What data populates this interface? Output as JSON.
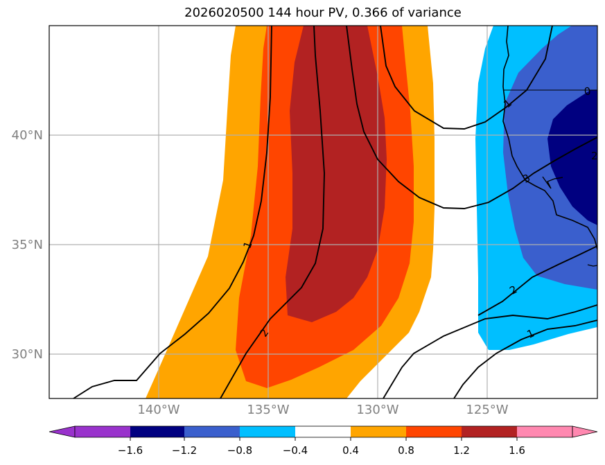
{
  "title": "2026020500 144 hour PV, 0.366 of variance",
  "axes": {
    "lat_ticks": [
      "40°N",
      "35°N",
      "30°N"
    ],
    "lon_ticks": [
      "140°W",
      "135°W",
      "130°W",
      "125°W"
    ],
    "lat_range": [
      28,
      45
    ],
    "lon_range": [
      -145,
      -120
    ]
  },
  "colorbar": {
    "ticks": [
      "−1.6",
      "−1.2",
      "−0.8",
      "−0.4",
      "0.4",
      "0.8",
      "1.2",
      "1.6"
    ],
    "bins": [
      {
        "range": "< -1.6",
        "color": "#9932cc"
      },
      {
        "range": "-1.6 to -1.2",
        "color": "#000080"
      },
      {
        "range": "-1.2 to -0.8",
        "color": "#3a5fcd"
      },
      {
        "range": "-0.8 to -0.4",
        "color": "#00bfff"
      },
      {
        "range": "-0.4 to 0.4",
        "color": "#ffffff"
      },
      {
        "range": "0.4 to 0.8",
        "color": "#ffa500"
      },
      {
        "range": "0.8 to 1.2",
        "color": "#ff4500"
      },
      {
        "range": "1.2 to 1.6",
        "color": "#b22222"
      },
      {
        "range": "> 1.6",
        "color": "#ff88b0"
      }
    ]
  },
  "contours": {
    "labels": [
      "1",
      "2",
      "3",
      "2",
      "1",
      "1",
      "2",
      "3",
      "0"
    ]
  },
  "chart_data": {
    "type": "heatmap",
    "title": "2026020500 144 hour PV, 0.366 of variance",
    "variable": "PV",
    "projection": "lat-lon map, North Pacific / US west coast",
    "x_axis": "longitude",
    "y_axis": "latitude",
    "xlim": [
      -145,
      -120
    ],
    "ylim": [
      28,
      45
    ],
    "xticks": [
      "140°W",
      "135°W",
      "130°W",
      "125°W"
    ],
    "yticks": [
      "30°N",
      "35°N",
      "40°N"
    ],
    "grid": true,
    "colorbar_levels": [
      -1.6,
      -1.2,
      -0.8,
      -0.4,
      0.4,
      0.8,
      1.2,
      1.6
    ],
    "colorbar_extend": "both",
    "contour_levels": [
      0,
      1,
      2,
      3
    ],
    "features": [
      {
        "sign": "positive",
        "peak_band": "1.2 to 1.6",
        "center_lon": -132,
        "center_lat": 37
      },
      {
        "sign": "negative",
        "peak_band": "-1.6 to -1.2",
        "center_lon": -120.5,
        "center_lat": 39
      }
    ]
  }
}
